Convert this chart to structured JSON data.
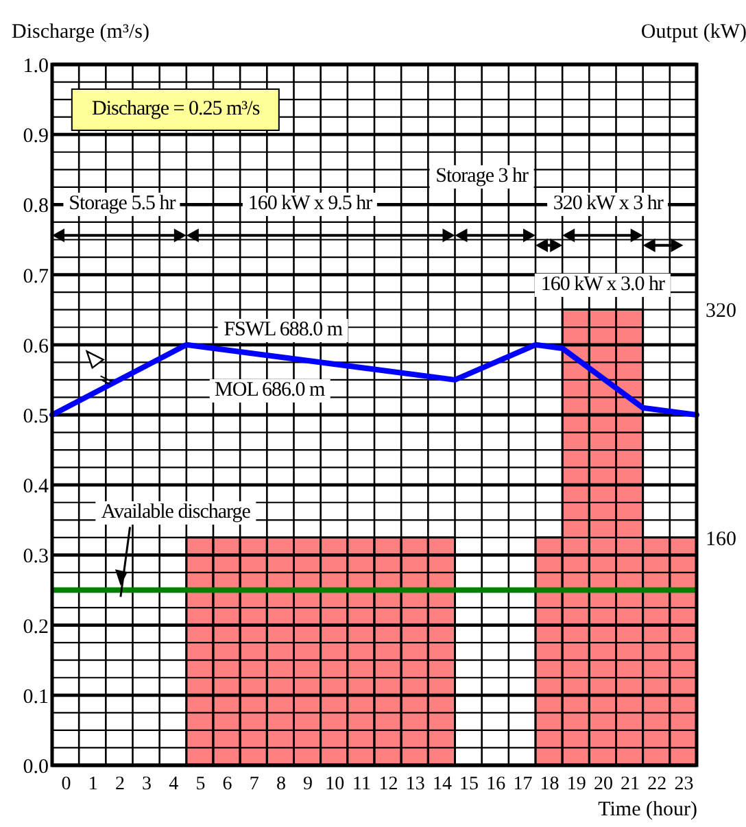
{
  "chart_data": {
    "type": "bar",
    "ylabel": "Discharge (m³/s)",
    "y2label": "Output (kW)",
    "xlabel": "Time (hour)",
    "annotations": [
      "Discharge = 0.25 m³/s",
      "Storage 5.5 hr",
      "160 kW x 9.5 hr",
      "Storage 3 hr",
      "320 kW x 3 hr",
      "160 kW x 3.0 hr",
      "FSWL 688.0 m",
      "MOL 686.0 m"
    ],
    "xlim": [
      0,
      24
    ],
    "xticks": [
      {
        "value": 0.5,
        "label": "0"
      },
      {
        "value": 1.5,
        "label": "1"
      },
      {
        "value": 2.5,
        "label": "2"
      },
      {
        "value": 3.5,
        "label": "3"
      },
      {
        "value": 4.5,
        "label": "4"
      },
      {
        "value": 5.5,
        "label": "5"
      },
      {
        "value": 6.5,
        "label": "6"
      },
      {
        "value": 7.5,
        "label": "7"
      },
      {
        "value": 8.5,
        "label": "8"
      },
      {
        "value": 9.5,
        "label": "9"
      },
      {
        "value": 10.5,
        "label": "10"
      },
      {
        "value": 11.5,
        "label": "11"
      },
      {
        "value": 12.5,
        "label": "12"
      },
      {
        "value": 13.5,
        "label": "13"
      },
      {
        "value": 14.5,
        "label": "14"
      },
      {
        "value": 15.5,
        "label": "15"
      },
      {
        "value": 16.5,
        "label": "16"
      },
      {
        "value": 17.5,
        "label": "17"
      },
      {
        "value": 18.5,
        "label": "18"
      },
      {
        "value": 19.5,
        "label": "19"
      },
      {
        "value": 20.5,
        "label": "20"
      },
      {
        "value": 21.5,
        "label": "21"
      },
      {
        "value": 22.5,
        "label": "22"
      },
      {
        "value": 23.5,
        "label": "23"
      }
    ],
    "ylim": [
      0,
      1
    ],
    "yticks": [
      {
        "value": 0,
        "label": "0.0"
      },
      {
        "value": 0.1,
        "label": "0.1"
      },
      {
        "value": 0.2,
        "label": "0.2"
      },
      {
        "value": 0.3,
        "label": "0.3"
      },
      {
        "value": 0.4,
        "label": "0.4"
      },
      {
        "value": 0.5,
        "label": "0.5"
      },
      {
        "value": 0.6,
        "label": "0.6"
      },
      {
        "value": 0.7,
        "label": "0.7"
      },
      {
        "value": 0.8,
        "label": "0.8"
      },
      {
        "value": 0.9,
        "label": "0.9"
      },
      {
        "value": 1,
        "label": "1.0"
      }
    ],
    "y2lim": [
      0,
      492
    ],
    "y2ticks": [
      160,
      320
    ],
    "series": [
      {
        "axis": "y2",
        "color": "#ff8080",
        "x": [
          5.5,
          6.5,
          7.5,
          8.5,
          9.5,
          10.5,
          11.5,
          12.5,
          13.5,
          14.5,
          18.5,
          19.5,
          20.5,
          21.5,
          22.5,
          23.5
        ],
        "values": [
          160,
          160,
          160,
          160,
          160,
          160,
          160,
          160,
          160,
          160,
          160,
          320,
          320,
          320,
          160,
          160
        ]
      },
      {
        "type": "line",
        "color": "#0000ff",
        "x": [
          0,
          5,
          15,
          18,
          19,
          22,
          24
        ],
        "values": [
          0.5,
          0.6,
          0.55,
          0.6,
          0.595,
          0.51,
          0.5
        ]
      }
    ],
    "ref_lines": [
      {
        "axis": "y",
        "value": 0.25,
        "label": "Available discharge",
        "color": "#008000"
      }
    ],
    "grid": true
  }
}
